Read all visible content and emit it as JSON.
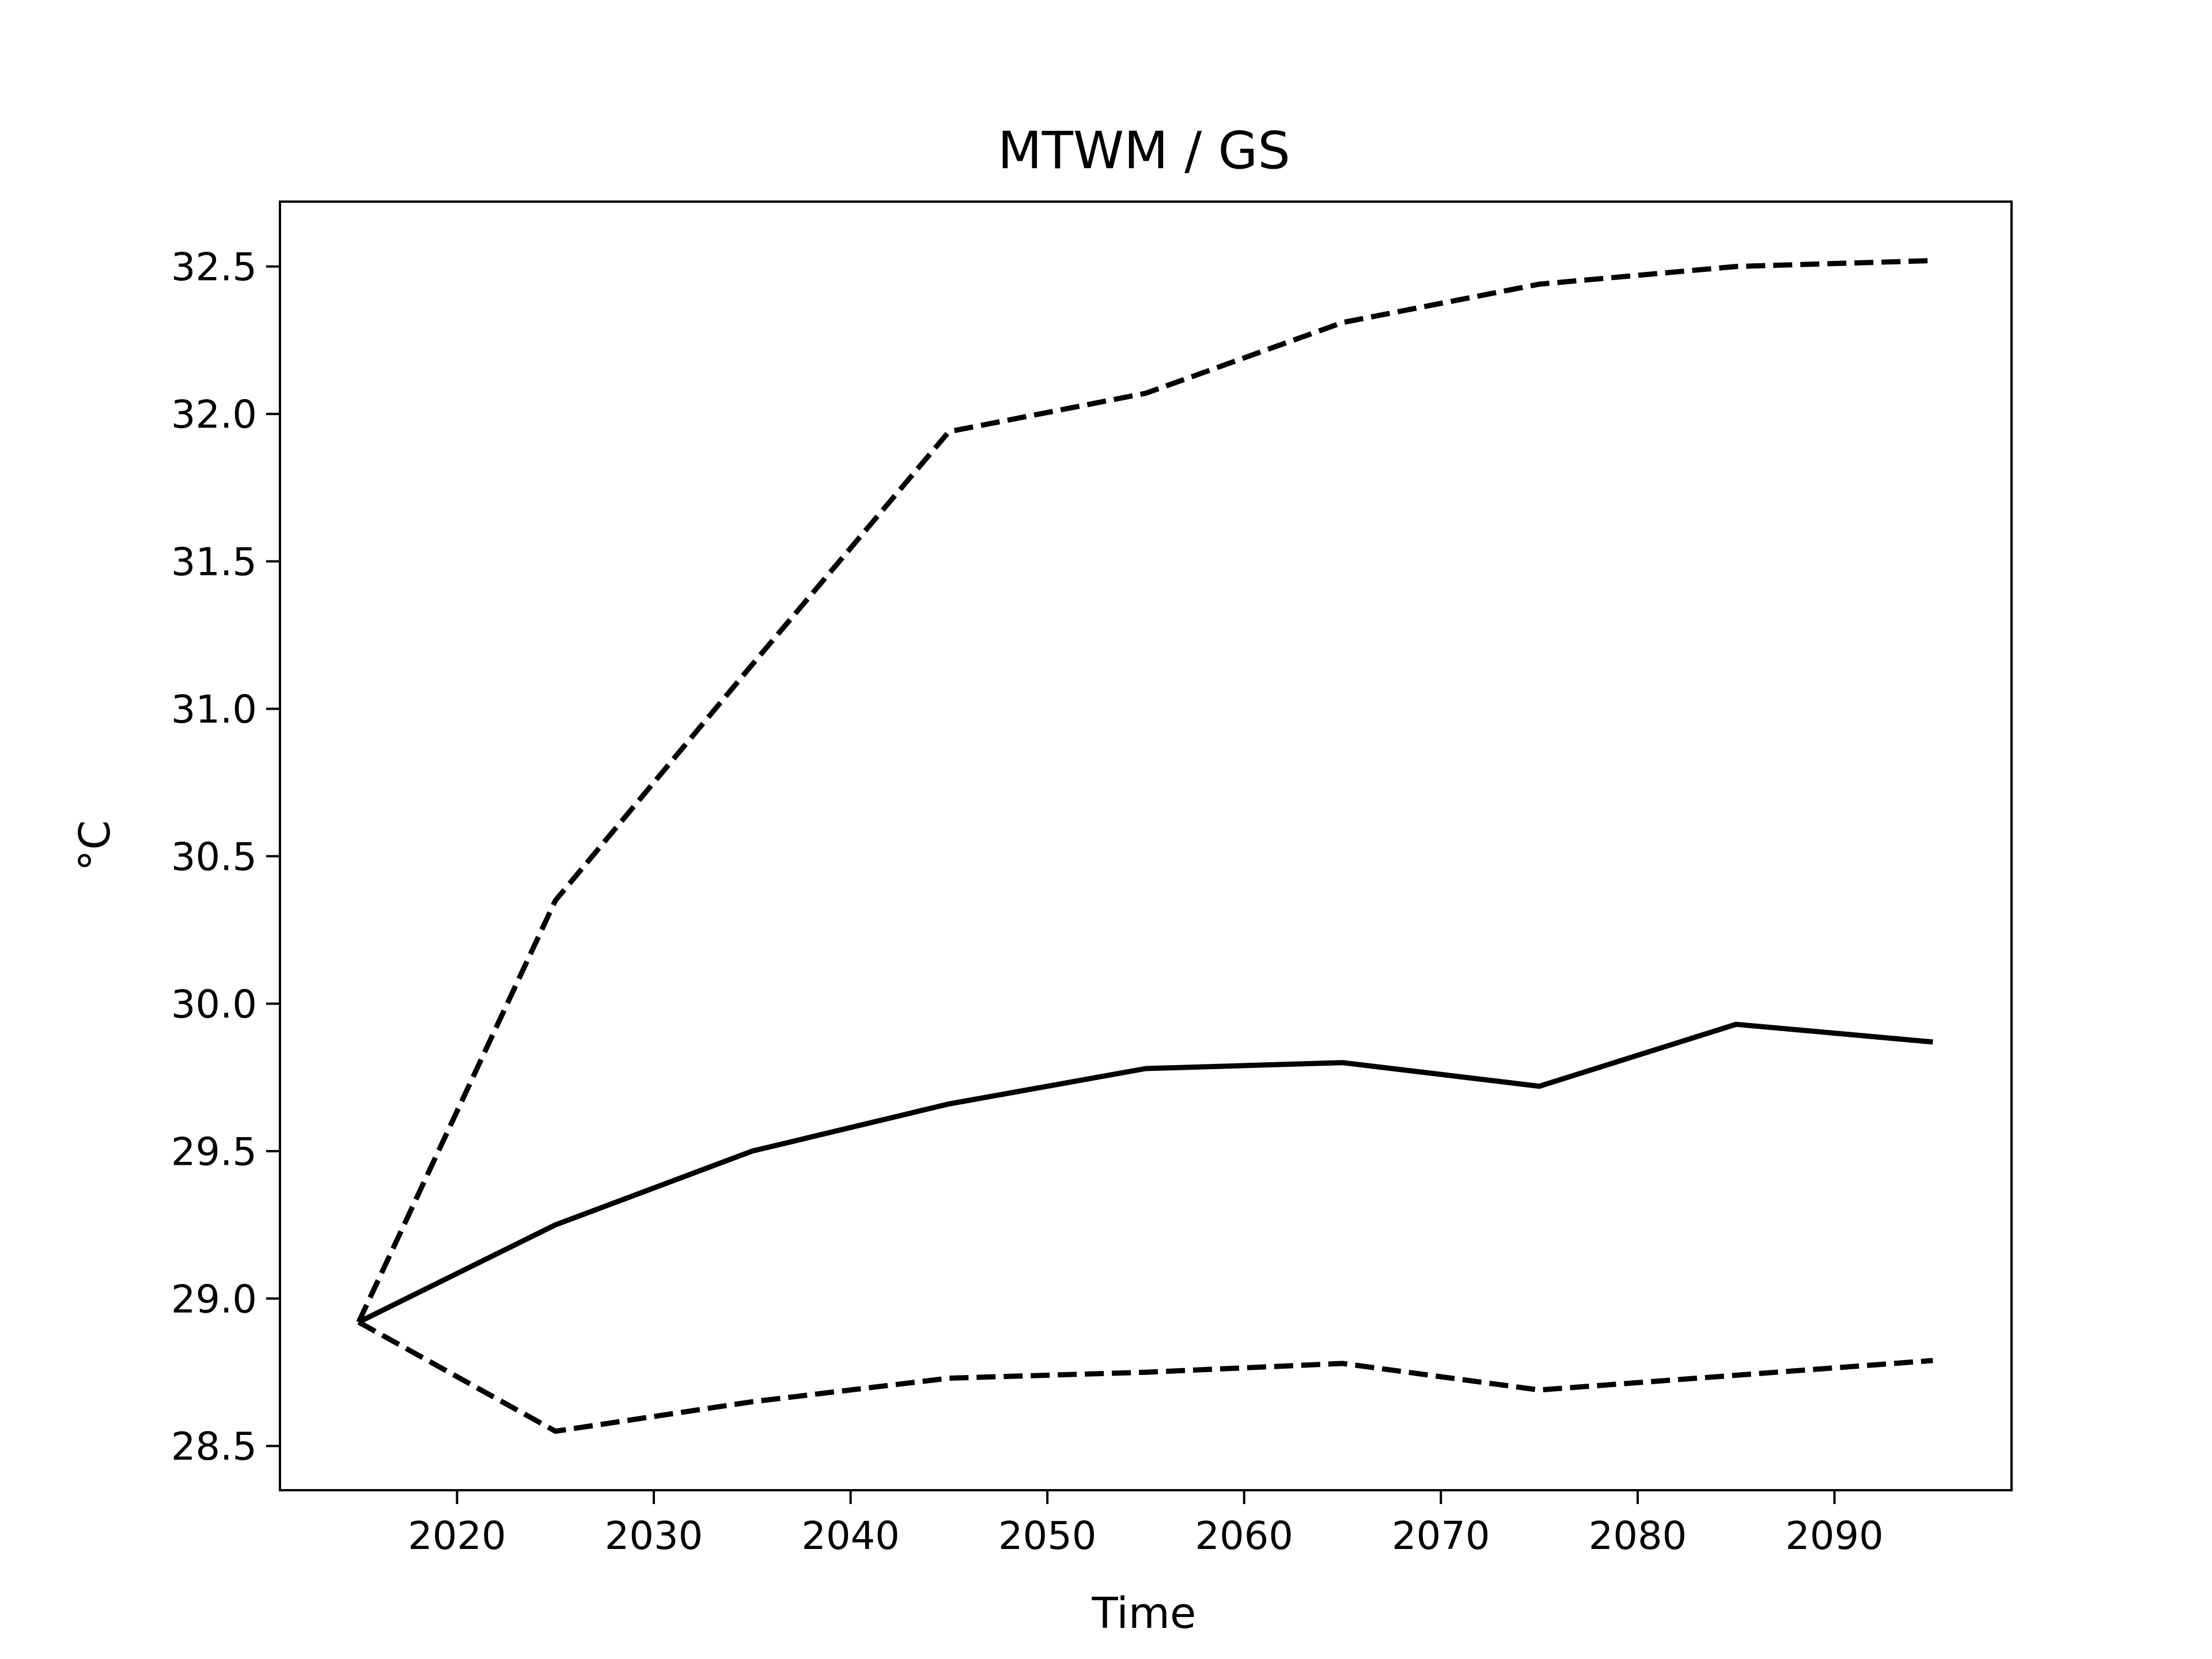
{
  "chart_data": {
    "type": "line",
    "title": "MTWM / GS",
    "xlabel": "Time",
    "ylabel": "°C",
    "x": [
      2015,
      2025,
      2035,
      2045,
      2055,
      2065,
      2075,
      2085,
      2095
    ],
    "series": [
      {
        "style": "solid",
        "color": "#000000",
        "values": [
          28.92,
          29.25,
          29.5,
          29.66,
          29.78,
          29.8,
          29.72,
          29.93,
          29.87
        ]
      },
      {
        "style": "dashed",
        "color": "#000000",
        "values": [
          28.92,
          30.35,
          31.15,
          31.94,
          32.07,
          32.31,
          32.44,
          32.5,
          32.52
        ]
      },
      {
        "style": "dashed",
        "color": "#000000",
        "values": [
          28.92,
          28.55,
          28.65,
          28.73,
          28.75,
          28.78,
          28.69,
          28.74,
          28.79
        ]
      }
    ],
    "xlim": [
      2011,
      2099
    ],
    "ylim": [
      28.35,
      32.72
    ],
    "xticks": [
      2020,
      2030,
      2040,
      2050,
      2060,
      2070,
      2080,
      2090
    ],
    "yticks": [
      28.5,
      29.0,
      29.5,
      30.0,
      30.5,
      31.0,
      31.5,
      32.0,
      32.5
    ],
    "xtick_labels": [
      "2020",
      "2030",
      "2040",
      "2050",
      "2060",
      "2070",
      "2080",
      "2090"
    ],
    "ytick_labels": [
      "28.5",
      "29.0",
      "29.5",
      "30.0",
      "30.5",
      "31.0",
      "31.5",
      "32.0",
      "32.5"
    ],
    "grid": false,
    "legend": false
  }
}
